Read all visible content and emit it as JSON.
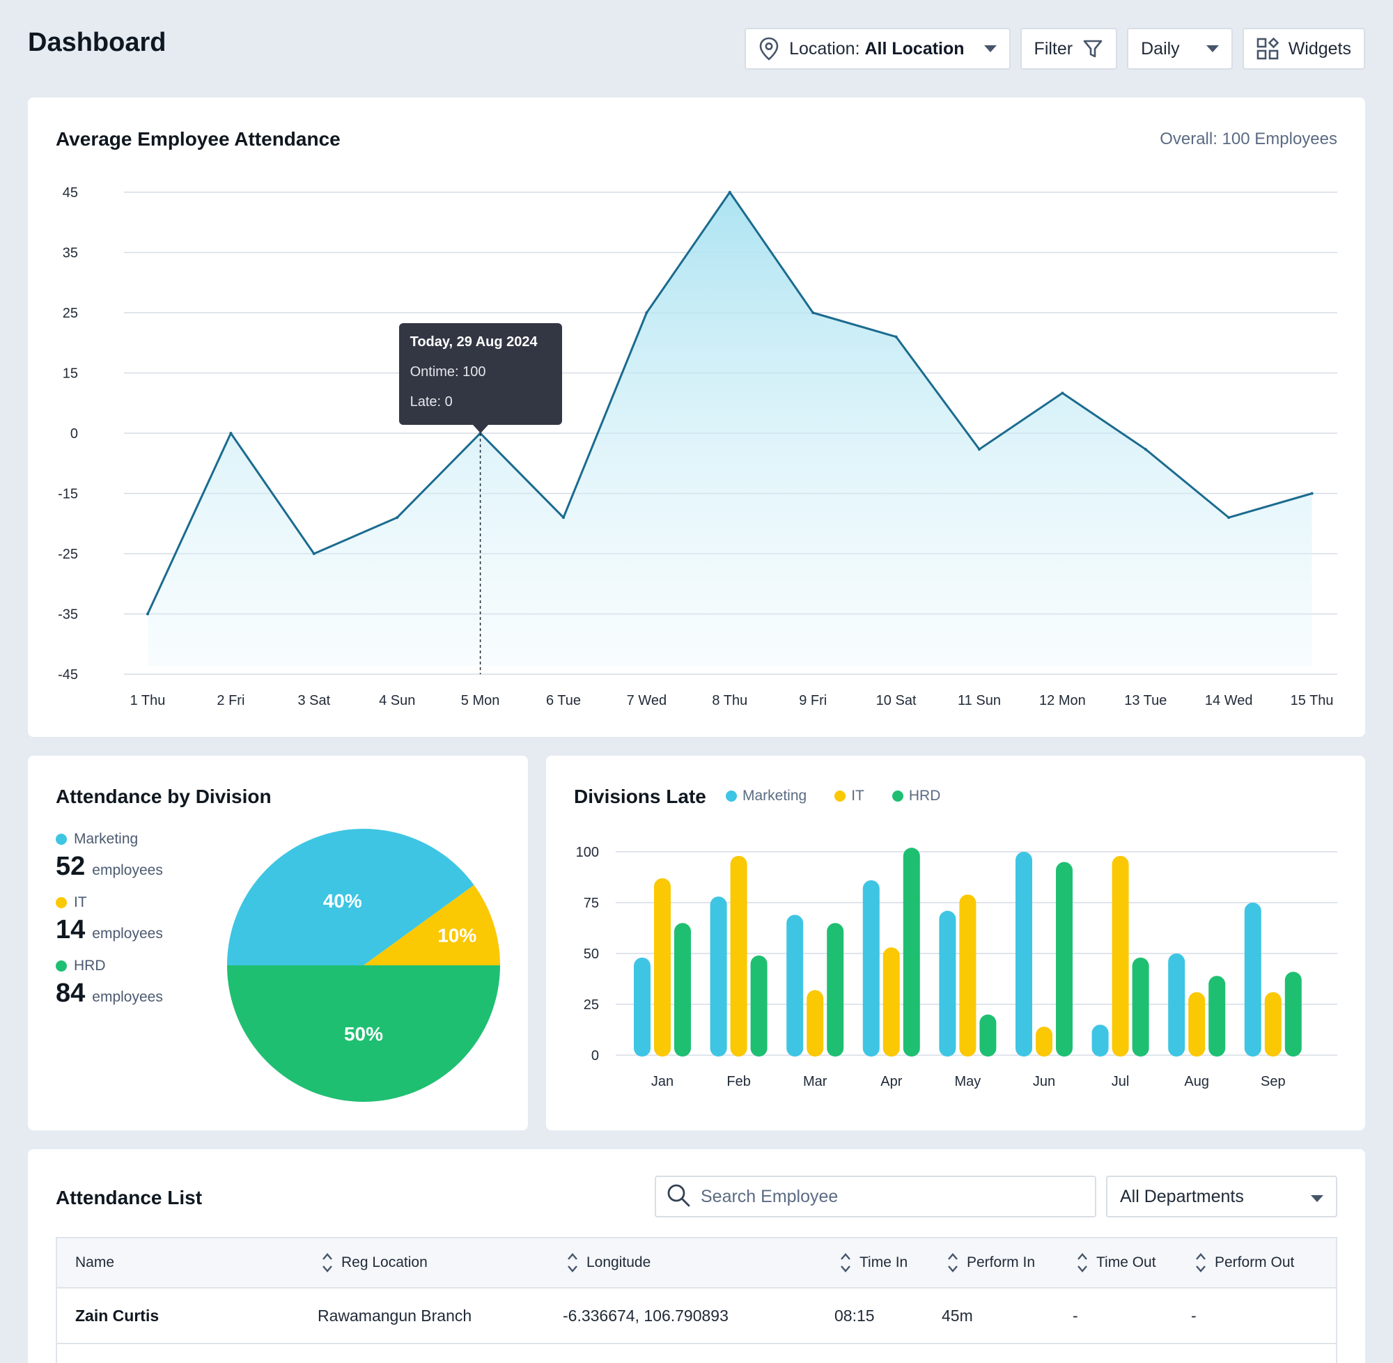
{
  "page": {
    "title": "Dashboard"
  },
  "toolbar": {
    "location_prefix": "Location:",
    "location_value": "All Location",
    "filter_label": "Filter",
    "period_label": "Daily",
    "widgets_label": "Widgets"
  },
  "attendance_card": {
    "title": "Average Employee Attendance",
    "overall": "Overall: 100 Employees",
    "tooltip": {
      "title": "Today, 29 Aug 2024",
      "ontime": "Ontime: 100",
      "late": "Late: 0",
      "index": 4
    }
  },
  "division_card": {
    "title": "Attendance by Division",
    "unit": "employees",
    "items": [
      {
        "name": "Marketing",
        "count": "52"
      },
      {
        "name": "IT",
        "count": "14"
      },
      {
        "name": "HRD",
        "count": "84"
      }
    ]
  },
  "late_card": {
    "title": "Divisions Late",
    "legend": [
      "Marketing",
      "IT",
      "HRD"
    ]
  },
  "colors": {
    "marketing": "#3ec5e3",
    "it": "#fbc804",
    "hrd": "#1fbf72",
    "line": "#1b6b8f",
    "tooltip_bg": "#333744"
  },
  "list_card": {
    "title": "Attendance List",
    "search_placeholder": "Search Employee",
    "department_select": "All Departments",
    "columns": [
      "Name",
      "Reg Location",
      "Longitude",
      "Time In",
      "Perform In",
      "Time Out",
      "Perform Out"
    ],
    "rows": [
      {
        "name": "Zain Curtis",
        "reg_location": "Rawamangun Branch",
        "longitude": "-6.336674, 106.790893",
        "time_in": "08:15",
        "perform_in": "45m",
        "time_out": "-",
        "perform_out": "-"
      }
    ]
  },
  "chart_data": [
    {
      "type": "area",
      "title": "Average Employee Attendance",
      "categories": [
        "1 Thu",
        "2 Fri",
        "3 Sat",
        "4 Sun",
        "5 Mon",
        "6 Tue",
        "7 Wed",
        "8 Thu",
        "9 Fri",
        "10 Sat",
        "11 Sun",
        "12 Mon",
        "13 Tue",
        "14 Wed",
        "15 Thu"
      ],
      "values": [
        -35,
        0,
        -25,
        -19,
        0,
        -19,
        25,
        45,
        25,
        21,
        -4,
        10,
        -4,
        -19,
        -15
      ],
      "yticks": [
        45,
        35,
        25,
        15,
        0,
        -15,
        -25,
        -35,
        -45
      ],
      "grid": true
    },
    {
      "type": "pie",
      "title": "Attendance by Division",
      "slices": [
        {
          "name": "Marketing",
          "value": 40,
          "label": "40%"
        },
        {
          "name": "IT",
          "value": 10,
          "label": "10%"
        },
        {
          "name": "HRD",
          "value": 50,
          "label": "50%"
        }
      ]
    },
    {
      "type": "bar",
      "title": "Divisions Late",
      "categories": [
        "Jan",
        "Feb",
        "Mar",
        "Apr",
        "May",
        "Jun",
        "Jul",
        "Aug",
        "Sep"
      ],
      "series": [
        {
          "name": "Marketing",
          "values": [
            48,
            78,
            69,
            86,
            71,
            100,
            15,
            50,
            75
          ]
        },
        {
          "name": "IT",
          "values": [
            87,
            98,
            32,
            53,
            79,
            14,
            98,
            31,
            31
          ]
        },
        {
          "name": "HRD",
          "values": [
            65,
            49,
            65,
            102,
            20,
            95,
            48,
            39,
            41
          ]
        }
      ],
      "ylim": [
        0,
        100
      ],
      "yticks": [
        100,
        75,
        50,
        25,
        0
      ],
      "legend": "top",
      "grid": true
    }
  ]
}
